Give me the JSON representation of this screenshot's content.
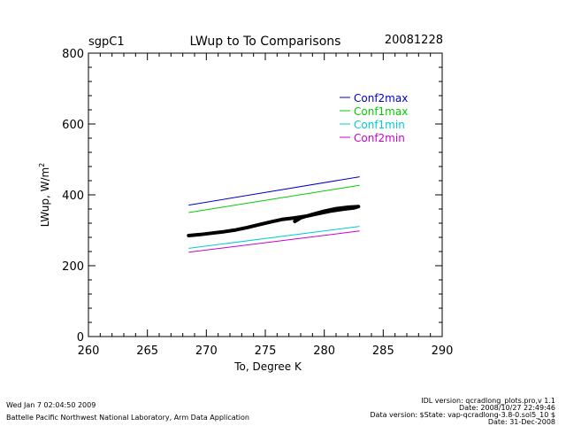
{
  "header": {
    "site": "sgpC1",
    "title": "LWup to To Comparisons",
    "date": "20081228"
  },
  "chart_data": {
    "type": "line",
    "title": "LWup to To Comparisons",
    "xlabel": "To, Degree K",
    "ylabel": "LWup, W/m",
    "ylabel_sup": "2",
    "xlim": [
      260,
      290
    ],
    "ylim": [
      0,
      800
    ],
    "x_ticks": [
      260,
      265,
      270,
      275,
      280,
      285,
      290
    ],
    "y_ticks": [
      0,
      200,
      400,
      600,
      800
    ],
    "grid": false,
    "legend_position": "top-right",
    "series": [
      {
        "name": "Conf2max",
        "color": "#0000cc",
        "x": [
          268.5,
          283.0
        ],
        "y": [
          371,
          451
        ]
      },
      {
        "name": "Conf1max",
        "color": "#00cc00",
        "x": [
          268.5,
          283.0
        ],
        "y": [
          350,
          427
        ]
      },
      {
        "name": "Conf1min",
        "color": "#00cccc",
        "x": [
          268.5,
          283.0
        ],
        "y": [
          249,
          311
        ]
      },
      {
        "name": "Conf2min",
        "color": "#cc00cc",
        "x": [
          268.5,
          283.0
        ],
        "y": [
          238,
          298
        ]
      }
    ],
    "observations": {
      "color": "#000000",
      "x": [
        268.5,
        269.5,
        270.5,
        271.5,
        272.5,
        273.5,
        274.5,
        275.5,
        276.5,
        277.5,
        278.5,
        279.5,
        280.5,
        281.5,
        282.5,
        282.9,
        282.0,
        281.0,
        280.0,
        279.0,
        278.0,
        277.5
      ],
      "y": [
        285,
        288,
        292,
        296,
        301,
        308,
        316,
        324,
        331,
        335,
        340,
        347,
        354,
        359,
        363,
        367,
        365,
        361,
        354,
        345,
        335,
        325
      ]
    }
  },
  "footer": {
    "run_date": "Wed Jan  7 02:04:50 2009",
    "org": "Battelle Pacific Northwest National Laboratory, Arm Data Application",
    "idl_version": "IDL version: qcradlong_plots.pro,v 1.1",
    "idl_date": "Date: 2008/10/27 22:49:46",
    "data_version": "Data version: $State: vap-qcradlong-3.8-0.sol5_10 $",
    "data_date": "Date: 31-Dec-2008"
  }
}
